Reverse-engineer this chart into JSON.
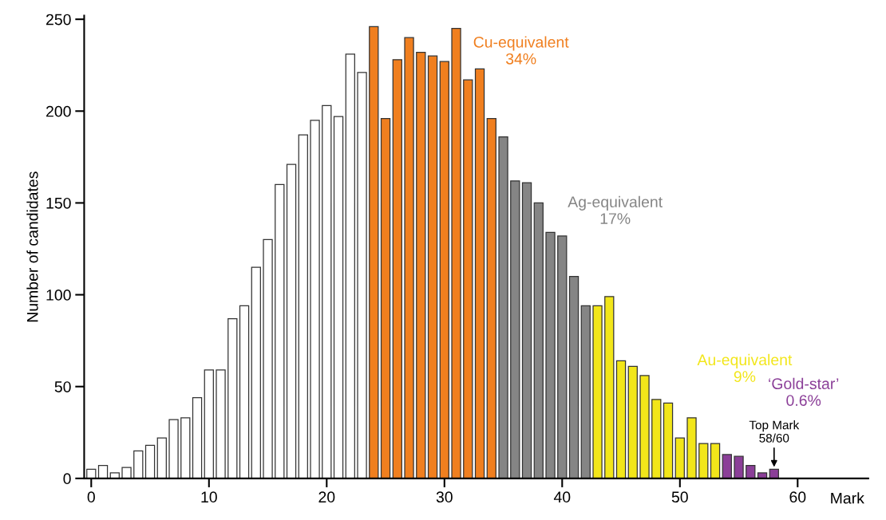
{
  "chart_data": {
    "type": "bar",
    "xlabel": "Mark",
    "ylabel": "Number of candidates",
    "x": [
      0,
      1,
      2,
      3,
      4,
      5,
      6,
      7,
      8,
      9,
      10,
      11,
      12,
      13,
      14,
      15,
      16,
      17,
      18,
      19,
      20,
      21,
      22,
      23,
      24,
      25,
      26,
      27,
      28,
      29,
      30,
      31,
      32,
      33,
      34,
      35,
      36,
      37,
      38,
      39,
      40,
      41,
      42,
      43,
      44,
      45,
      46,
      47,
      48,
      49,
      50,
      51,
      52,
      53,
      54,
      55,
      56,
      57,
      58
    ],
    "series": [
      {
        "color": "#ffffff",
        "values": [
          5,
          7,
          3,
          6,
          15,
          18,
          22,
          32,
          33,
          44,
          59,
          59,
          87,
          94,
          115,
          130,
          160,
          171,
          187,
          195,
          203,
          197,
          231,
          221,
          null,
          null,
          null,
          null,
          null,
          null,
          null,
          null,
          null,
          null,
          null,
          null,
          null,
          null,
          null,
          null,
          null,
          null,
          null,
          null,
          null,
          null,
          null,
          null,
          null,
          null,
          null,
          null,
          null,
          null,
          null,
          null,
          null,
          null,
          null
        ]
      },
      {
        "name": "Cu-equivalent\n34%",
        "color": "#f07f1f",
        "values": [
          null,
          null,
          null,
          null,
          null,
          null,
          null,
          null,
          null,
          null,
          null,
          null,
          null,
          null,
          null,
          null,
          null,
          null,
          null,
          null,
          null,
          null,
          null,
          null,
          246,
          196,
          228,
          240,
          232,
          230,
          227,
          245,
          217,
          223,
          196,
          null,
          null,
          null,
          null,
          null,
          null,
          null,
          null,
          null,
          null,
          null,
          null,
          null,
          null,
          null,
          null,
          null,
          null,
          null,
          null,
          null,
          null,
          null,
          null
        ]
      },
      {
        "name": "Ag-equivalent\n17%",
        "color": "#858585",
        "values": [
          null,
          null,
          null,
          null,
          null,
          null,
          null,
          null,
          null,
          null,
          null,
          null,
          null,
          null,
          null,
          null,
          null,
          null,
          null,
          null,
          null,
          null,
          null,
          null,
          null,
          null,
          null,
          null,
          null,
          null,
          null,
          null,
          null,
          null,
          null,
          186,
          162,
          161,
          150,
          134,
          132,
          110,
          94,
          null,
          null,
          null,
          null,
          null,
          null,
          null,
          null,
          null,
          null,
          null,
          null,
          null,
          null,
          null,
          null
        ]
      },
      {
        "name": "Au-equivalent\n9%",
        "color": "#f2e61a",
        "values": [
          null,
          null,
          null,
          null,
          null,
          null,
          null,
          null,
          null,
          null,
          null,
          null,
          null,
          null,
          null,
          null,
          null,
          null,
          null,
          null,
          null,
          null,
          null,
          null,
          null,
          null,
          null,
          null,
          null,
          null,
          null,
          null,
          null,
          null,
          null,
          null,
          null,
          null,
          null,
          null,
          null,
          null,
          null,
          94,
          99,
          64,
          61,
          56,
          43,
          41,
          22,
          33,
          19,
          19,
          null,
          null,
          null,
          null,
          null
        ]
      },
      {
        "name": "‘Gold-star’\n0.6%",
        "color": "#8b3f98",
        "values": [
          null,
          null,
          null,
          null,
          null,
          null,
          null,
          null,
          null,
          null,
          null,
          null,
          null,
          null,
          null,
          null,
          null,
          null,
          null,
          null,
          null,
          null,
          null,
          null,
          null,
          null,
          null,
          null,
          null,
          null,
          null,
          null,
          null,
          null,
          null,
          null,
          null,
          null,
          null,
          null,
          null,
          null,
          null,
          null,
          null,
          null,
          null,
          null,
          null,
          null,
          null,
          null,
          null,
          null,
          13,
          12,
          7,
          3,
          5
        ]
      }
    ],
    "annotations": [
      {
        "text": "Top Mark\n58/60",
        "x": 58,
        "y": 5
      }
    ],
    "xlim": [
      -0.6,
      66
    ],
    "xticks": [
      0,
      10,
      20,
      30,
      40,
      50,
      60
    ],
    "ylim": [
      0,
      252
    ],
    "yticks": [
      0,
      50,
      100,
      150,
      200,
      250
    ],
    "grid": false,
    "legend": false
  }
}
